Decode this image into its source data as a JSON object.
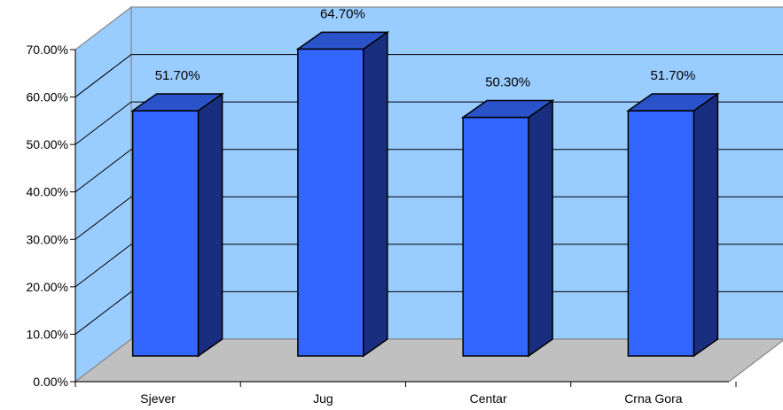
{
  "chart_data": {
    "type": "bar",
    "categories": [
      "Sjever",
      "Jug",
      "Centar",
      "Crna Gora"
    ],
    "values": [
      51.7,
      64.7,
      50.3,
      51.7
    ],
    "data_labels": [
      "51.70%",
      "64.70%",
      "50.30%",
      "51.70%"
    ],
    "y_ticks": [
      "0.00%",
      "10.00%",
      "20.00%",
      "30.00%",
      "40.00%",
      "50.00%",
      "60.00%",
      "70.00%"
    ],
    "ylim": [
      0,
      70
    ],
    "grid": true,
    "three_d": true,
    "colors": {
      "wall": "#99CCFF",
      "bar_front": "#3366FF",
      "bar_top": "#2B53C9",
      "bar_side": "#1A2E80",
      "outline": "#000000",
      "wall_border": "#888888"
    }
  }
}
